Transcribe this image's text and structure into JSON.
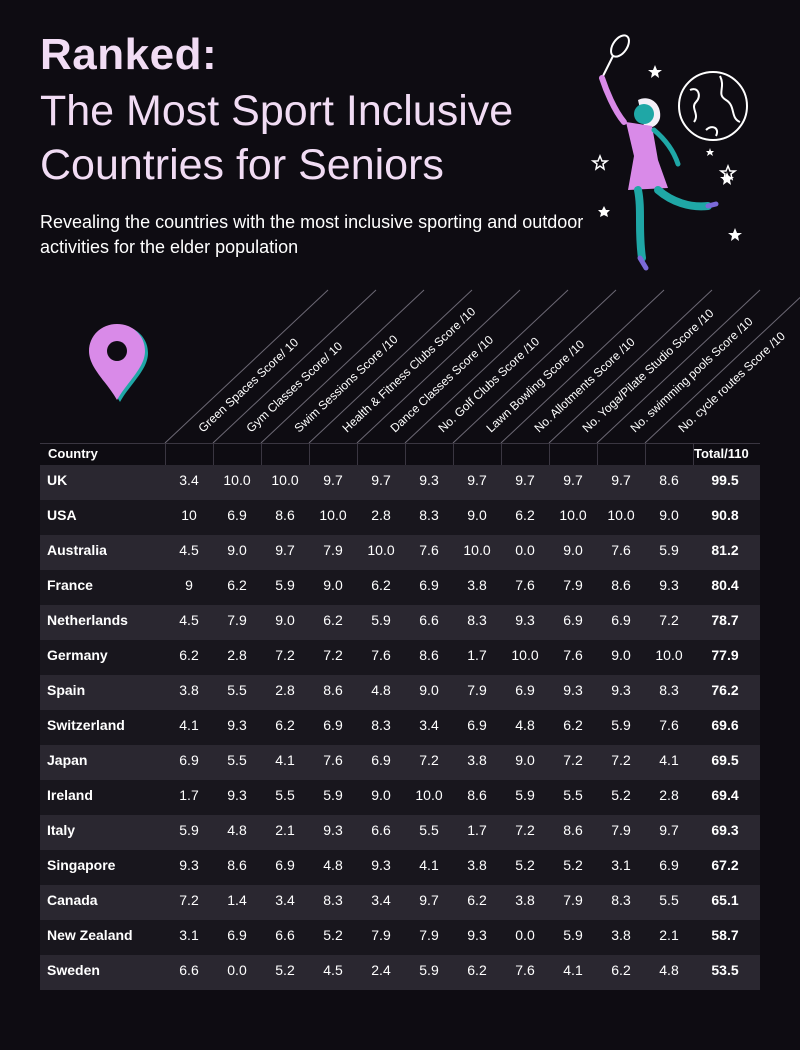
{
  "title": {
    "bold": "Ranked:",
    "line1": "The Most Sport Inclusive",
    "line2": "Countries for Seniors"
  },
  "subtitle": "Revealing the countries with the most inclusive sporting and outdoor activities for the elder population",
  "colors": {
    "background": "#0e0c12",
    "title": "#f1dcf4",
    "accent_pink": "#d98ae8",
    "accent_teal": "#1fa7a6",
    "row_light": "#2a2730",
    "row_dark": "#18161d"
  },
  "icons": [
    "location-pin-icon",
    "badminton-player-illustration",
    "globe-icon",
    "star-icon"
  ],
  "chart_data": {
    "type": "table",
    "country_header": "Country",
    "total_header": "Total/110",
    "columns": [
      "Green Spaces Score/ 10",
      "Gym Classes Score/ 10",
      "Swim Sessions Score /10",
      "Health & Fitness Clubs Score /10",
      "Dance Classes Score /10",
      "No. Golf Clubs Score /10",
      "Lawn Bowling Score /10",
      "No. Allotments Score /10",
      "No. Yoga/Pilate Studio Score /10",
      "No. swimming pools Score /10",
      "No. cycle routes Score /10"
    ],
    "rows": [
      {
        "country": "UK",
        "values": [
          "3.4",
          "10.0",
          "10.0",
          "9.7",
          "9.7",
          "9.3",
          "9.7",
          "9.7",
          "9.7",
          "9.7",
          "8.6"
        ],
        "total": "99.5"
      },
      {
        "country": "USA",
        "values": [
          "10",
          "6.9",
          "8.6",
          "10.0",
          "2.8",
          "8.3",
          "9.0",
          "6.2",
          "10.0",
          "10.0",
          "9.0"
        ],
        "total": "90.8"
      },
      {
        "country": "Australia",
        "values": [
          "4.5",
          "9.0",
          "9.7",
          "7.9",
          "10.0",
          "7.6",
          "10.0",
          "0.0",
          "9.0",
          "7.6",
          "5.9"
        ],
        "total": "81.2"
      },
      {
        "country": "France",
        "values": [
          "9",
          "6.2",
          "5.9",
          "9.0",
          "6.2",
          "6.9",
          "3.8",
          "7.6",
          "7.9",
          "8.6",
          "9.3"
        ],
        "total": "80.4"
      },
      {
        "country": "Netherlands",
        "values": [
          "4.5",
          "7.9",
          "9.0",
          "6.2",
          "5.9",
          "6.6",
          "8.3",
          "9.3",
          "6.9",
          "6.9",
          "7.2"
        ],
        "total": "78.7"
      },
      {
        "country": "Germany",
        "values": [
          "6.2",
          "2.8",
          "7.2",
          "7.2",
          "7.6",
          "8.6",
          "1.7",
          "10.0",
          "7.6",
          "9.0",
          "10.0"
        ],
        "total": "77.9"
      },
      {
        "country": "Spain",
        "values": [
          "3.8",
          "5.5",
          "2.8",
          "8.6",
          "4.8",
          "9.0",
          "7.9",
          "6.9",
          "9.3",
          "9.3",
          "8.3"
        ],
        "total": "76.2"
      },
      {
        "country": "Switzerland",
        "values": [
          "4.1",
          "9.3",
          "6.2",
          "6.9",
          "8.3",
          "3.4",
          "6.9",
          "4.8",
          "6.2",
          "5.9",
          "7.6"
        ],
        "total": "69.6"
      },
      {
        "country": "Japan",
        "values": [
          "6.9",
          "5.5",
          "4.1",
          "7.6",
          "6.9",
          "7.2",
          "3.8",
          "9.0",
          "7.2",
          "7.2",
          "4.1"
        ],
        "total": "69.5"
      },
      {
        "country": "Ireland",
        "values": [
          "1.7",
          "9.3",
          "5.5",
          "5.9",
          "9.0",
          "10.0",
          "8.6",
          "5.9",
          "5.5",
          "5.2",
          "2.8"
        ],
        "total": "69.4"
      },
      {
        "country": "Italy",
        "values": [
          "5.9",
          "4.8",
          "2.1",
          "9.3",
          "6.6",
          "5.5",
          "1.7",
          "7.2",
          "8.6",
          "7.9",
          "9.7"
        ],
        "total": "69.3"
      },
      {
        "country": "Singapore",
        "values": [
          "9.3",
          "8.6",
          "6.9",
          "4.8",
          "9.3",
          "4.1",
          "3.8",
          "5.2",
          "5.2",
          "3.1",
          "6.9"
        ],
        "total": "67.2"
      },
      {
        "country": "Canada",
        "values": [
          "7.2",
          "1.4",
          "3.4",
          "8.3",
          "3.4",
          "9.7",
          "6.2",
          "3.8",
          "7.9",
          "8.3",
          "5.5"
        ],
        "total": "65.1"
      },
      {
        "country": "New Zealand",
        "values": [
          "3.1",
          "6.9",
          "6.6",
          "5.2",
          "7.9",
          "7.9",
          "9.3",
          "0.0",
          "5.9",
          "3.8",
          "2.1"
        ],
        "total": "58.7"
      },
      {
        "country": "Sweden",
        "values": [
          "6.6",
          "0.0",
          "5.2",
          "4.5",
          "2.4",
          "5.9",
          "6.2",
          "7.6",
          "4.1",
          "6.2",
          "4.8"
        ],
        "total": "53.5"
      }
    ]
  }
}
